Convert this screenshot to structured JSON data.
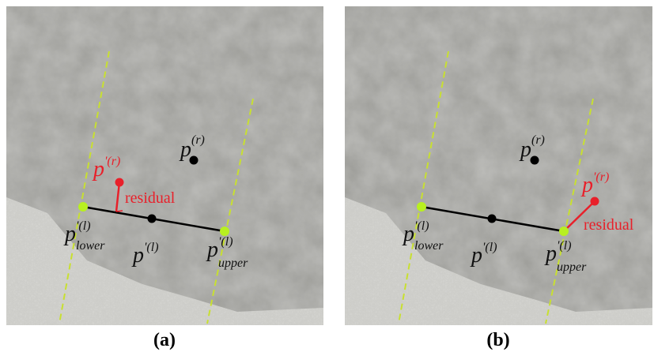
{
  "panels": [
    {
      "caption": "(a)",
      "reference": {
        "base": "p",
        "sup": "(r)"
      },
      "moved": {
        "base": "p",
        "sup": "'(r)"
      },
      "residual": "residual",
      "lower": {
        "base": "p",
        "sup": "'(l)",
        "sub": "lower"
      },
      "middle": {
        "base": "p",
        "sup": "'(l)"
      },
      "upper": {
        "base": "p",
        "sup": "'(l)",
        "sub": "upper"
      }
    },
    {
      "caption": "(b)",
      "reference": {
        "base": "p",
        "sup": "(r)"
      },
      "moved": {
        "base": "p",
        "sup": "'(r)"
      },
      "residual": "residual",
      "lower": {
        "base": "p",
        "sup": "'(l)",
        "sub": "lower"
      },
      "middle": {
        "base": "p",
        "sup": "'(l)"
      },
      "upper": {
        "base": "p",
        "sup": "'(l)",
        "sub": "upper"
      }
    }
  ]
}
